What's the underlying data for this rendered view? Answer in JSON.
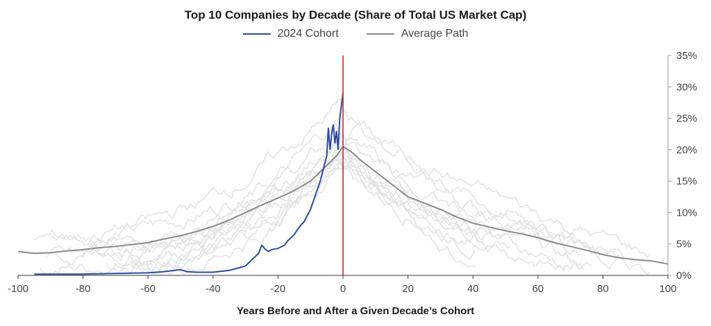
{
  "chart_data": {
    "type": "line",
    "title": "Top 10 Companies by Decade (Share of Total US Market Cap)",
    "xlabel": "Years Before and After a Given Decade’s Cohort",
    "ylabel": "",
    "xlim": [
      -100,
      100
    ],
    "ylim": [
      0,
      35
    ],
    "x_ticks": [
      -100,
      -80,
      -60,
      -40,
      -20,
      0,
      20,
      40,
      60,
      80,
      100
    ],
    "y_ticks": [
      0,
      5,
      10,
      15,
      20,
      25,
      30,
      35
    ],
    "y_tick_labels": [
      "0%",
      "5%",
      "10%",
      "15%",
      "20%",
      "25%",
      "30%",
      "35%"
    ],
    "legend_position": "top-center",
    "grid": false,
    "reference_line_x": 0,
    "colors": {
      "cohort": "#2a4b9b",
      "average": "#8a8a8a",
      "background": "#e3e3e6",
      "reference": "#d0202a"
    },
    "series": [
      {
        "name": "2024 Cohort",
        "points": [
          [
            -95,
            0.2
          ],
          [
            -80,
            0.2
          ],
          [
            -70,
            0.3
          ],
          [
            -60,
            0.4
          ],
          [
            -55,
            0.6
          ],
          [
            -50,
            0.9
          ],
          [
            -48,
            0.6
          ],
          [
            -45,
            0.5
          ],
          [
            -40,
            0.5
          ],
          [
            -35,
            0.8
          ],
          [
            -32,
            1.2
          ],
          [
            -30,
            1.5
          ],
          [
            -28,
            2.5
          ],
          [
            -26,
            3.5
          ],
          [
            -25,
            4.8
          ],
          [
            -24,
            4.2
          ],
          [
            -23,
            3.8
          ],
          [
            -22,
            4.1
          ],
          [
            -20,
            4.3
          ],
          [
            -18,
            4.8
          ],
          [
            -17,
            5.5
          ],
          [
            -16,
            6.0
          ],
          [
            -15,
            6.5
          ],
          [
            -14,
            7.3
          ],
          [
            -13,
            8.0
          ],
          [
            -12,
            8.5
          ],
          [
            -11,
            9.5
          ],
          [
            -10,
            10.5
          ],
          [
            -9,
            12
          ],
          [
            -8,
            13.5
          ],
          [
            -7,
            15
          ],
          [
            -6,
            17
          ],
          [
            -5,
            19
          ],
          [
            -4.5,
            23.5
          ],
          [
            -4,
            20
          ],
          [
            -3.5,
            22.5
          ],
          [
            -3,
            24
          ],
          [
            -2.5,
            21
          ],
          [
            -2,
            23
          ],
          [
            -1.5,
            20
          ],
          [
            -1,
            25
          ],
          [
            -0.5,
            27
          ],
          [
            0,
            29
          ]
        ]
      },
      {
        "name": "Average Path",
        "points": [
          [
            -100,
            3.8
          ],
          [
            -95,
            3.5
          ],
          [
            -90,
            3.6
          ],
          [
            -85,
            3.9
          ],
          [
            -80,
            4.1
          ],
          [
            -75,
            4.4
          ],
          [
            -70,
            4.6
          ],
          [
            -65,
            4.9
          ],
          [
            -60,
            5.2
          ],
          [
            -55,
            5.8
          ],
          [
            -50,
            6.3
          ],
          [
            -45,
            7.0
          ],
          [
            -40,
            7.8
          ],
          [
            -35,
            8.8
          ],
          [
            -30,
            10.0
          ],
          [
            -25,
            11.2
          ],
          [
            -20,
            12.3
          ],
          [
            -15,
            13.5
          ],
          [
            -10,
            15.0
          ],
          [
            -5,
            17.5
          ],
          [
            -2,
            19.0
          ],
          [
            0,
            20.5
          ],
          [
            3,
            19.5
          ],
          [
            5,
            18.5
          ],
          [
            10,
            16.5
          ],
          [
            15,
            14.5
          ],
          [
            20,
            12.5
          ],
          [
            25,
            11.5
          ],
          [
            30,
            10.5
          ],
          [
            35,
            9.3
          ],
          [
            40,
            8.3
          ],
          [
            45,
            7.7
          ],
          [
            50,
            7.1
          ],
          [
            55,
            6.6
          ],
          [
            60,
            6.0
          ],
          [
            65,
            5.2
          ],
          [
            70,
            4.6
          ],
          [
            75,
            4.0
          ],
          [
            80,
            3.3
          ],
          [
            85,
            2.8
          ],
          [
            90,
            2.5
          ],
          [
            95,
            2.3
          ],
          [
            100,
            1.8
          ]
        ]
      }
    ]
  }
}
